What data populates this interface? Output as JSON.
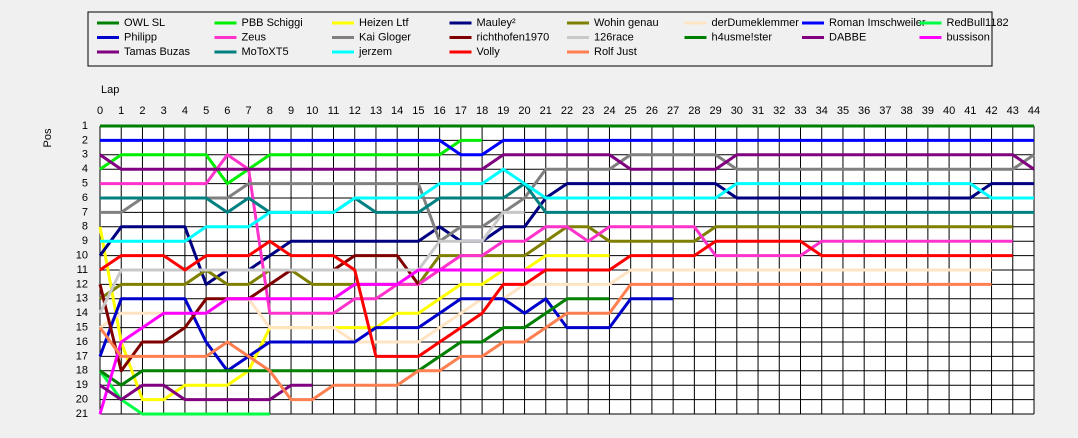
{
  "chart_data": {
    "type": "line",
    "xlabel": "Lap",
    "ylabel": "Pos",
    "x": [
      0,
      1,
      2,
      3,
      4,
      5,
      6,
      7,
      8,
      9,
      10,
      11,
      12,
      13,
      14,
      15,
      16,
      17,
      18,
      19,
      20,
      21,
      22,
      23,
      24,
      25,
      26,
      27,
      28,
      29,
      30,
      31,
      32,
      33,
      34,
      35,
      36,
      37,
      38,
      39,
      40,
      41,
      42,
      43,
      44
    ],
    "xlim": [
      0,
      44
    ],
    "xticks": [
      0,
      1,
      2,
      3,
      4,
      5,
      6,
      7,
      8,
      9,
      10,
      11,
      12,
      13,
      14,
      15,
      16,
      17,
      18,
      19,
      20,
      21,
      22,
      23,
      24,
      25,
      26,
      27,
      28,
      29,
      30,
      31,
      32,
      33,
      34,
      35,
      36,
      37,
      38,
      39,
      40,
      41,
      42,
      43,
      44
    ],
    "ylim": [
      1,
      21
    ],
    "y_reversed": true,
    "yticks": [
      1,
      2,
      3,
      4,
      5,
      6,
      7,
      8,
      9,
      10,
      11,
      12,
      13,
      14,
      15,
      16,
      17,
      18,
      19,
      20,
      21
    ],
    "grid": true,
    "series": [
      {
        "name": "OWL SL",
        "color": "#008000",
        "values": [
          1,
          1,
          1,
          1,
          1,
          1,
          1,
          1,
          1,
          1,
          1,
          1,
          1,
          1,
          1,
          1,
          1,
          1,
          1,
          1,
          1,
          1,
          1,
          1,
          1,
          1,
          1,
          1,
          1,
          1,
          1,
          1,
          1,
          1,
          1,
          1,
          1,
          1,
          1,
          1,
          1,
          1,
          1,
          1,
          1
        ]
      },
      {
        "name": "PBB Schiggi",
        "color": "#00ee00",
        "values": [
          4,
          3,
          3,
          3,
          3,
          3,
          5,
          4,
          3,
          3,
          3,
          3,
          3,
          3,
          3,
          3,
          3,
          2,
          2,
          null,
          null,
          null,
          null,
          null,
          null,
          null,
          null,
          null,
          null,
          null,
          null,
          null,
          null,
          null,
          null,
          null,
          null,
          null,
          null,
          null,
          null,
          null,
          null,
          null,
          null
        ]
      },
      {
        "name": "Heizen Ltf",
        "color": "#ffff00",
        "values": [
          8,
          16,
          20,
          20,
          19,
          19,
          19,
          18,
          15,
          15,
          15,
          15,
          15,
          15,
          14,
          14,
          13,
          12,
          12,
          11,
          11,
          10,
          10,
          10,
          10,
          null,
          null,
          null,
          null,
          null,
          null,
          null,
          null,
          null,
          null,
          null,
          null,
          null,
          null,
          null,
          null,
          null,
          null,
          null,
          null
        ]
      },
      {
        "name": "Mauley²",
        "color": "#000080",
        "values": [
          10,
          8,
          8,
          8,
          8,
          12,
          11,
          11,
          10,
          9,
          9,
          9,
          9,
          9,
          9,
          9,
          8,
          9,
          9,
          8,
          8,
          6,
          5,
          5,
          5,
          5,
          5,
          5,
          5,
          5,
          6,
          6,
          6,
          6,
          6,
          6,
          6,
          6,
          6,
          6,
          6,
          6,
          5,
          5,
          5
        ]
      },
      {
        "name": "Wohin genau",
        "color": "#808000",
        "values": [
          13,
          12,
          12,
          12,
          12,
          11,
          12,
          12,
          11,
          11,
          12,
          12,
          12,
          12,
          12,
          12,
          10,
          10,
          10,
          10,
          10,
          9,
          8,
          8,
          9,
          9,
          9,
          9,
          9,
          8,
          8,
          8,
          8,
          8,
          8,
          8,
          8,
          8,
          8,
          8,
          8,
          8,
          8,
          8,
          null
        ]
      },
      {
        "name": "derDumeklemmer",
        "color": "#ffe4c4",
        "values": [
          15,
          14,
          14,
          14,
          14,
          14,
          13,
          13,
          15,
          15,
          15,
          15,
          16,
          16,
          16,
          16,
          15,
          14,
          13,
          13,
          12,
          12,
          12,
          12,
          12,
          11,
          11,
          11,
          11,
          11,
          11,
          11,
          11,
          11,
          11,
          11,
          11,
          11,
          11,
          11,
          11,
          11,
          11,
          null,
          null
        ]
      },
      {
        "name": "Roman Imschweiler",
        "color": "#0000ff",
        "values": [
          2,
          2,
          2,
          2,
          2,
          2,
          2,
          2,
          2,
          2,
          2,
          2,
          2,
          2,
          2,
          2,
          2,
          3,
          3,
          2,
          2,
          2,
          2,
          2,
          2,
          2,
          2,
          2,
          2,
          2,
          2,
          2,
          2,
          2,
          2,
          2,
          2,
          2,
          2,
          2,
          2,
          2,
          2,
          2,
          2
        ]
      },
      {
        "name": "RedBull1182",
        "color": "#00ff44",
        "values": [
          18,
          20,
          21,
          21,
          21,
          21,
          21,
          21,
          21,
          null,
          null,
          null,
          null,
          null,
          null,
          null,
          null,
          null,
          null,
          null,
          null,
          null,
          null,
          null,
          null,
          null,
          null,
          null,
          null,
          null,
          null,
          null,
          null,
          null,
          null,
          null,
          null,
          null,
          null,
          null,
          null,
          null,
          null,
          null,
          null
        ]
      },
      {
        "name": "Philipp",
        "color": "#0000cc",
        "values": [
          17,
          13,
          13,
          13,
          13,
          16,
          18,
          17,
          16,
          16,
          16,
          16,
          16,
          15,
          15,
          15,
          14,
          13,
          13,
          13,
          14,
          13,
          15,
          15,
          15,
          13,
          13,
          13,
          null,
          null,
          null,
          null,
          null,
          null,
          null,
          null,
          null,
          null,
          null,
          null,
          null,
          null,
          null,
          null,
          null
        ]
      },
      {
        "name": "Zeus",
        "color": "#ff33cc",
        "values": [
          5,
          5,
          5,
          5,
          5,
          5,
          3,
          4,
          14,
          14,
          14,
          14,
          13,
          13,
          12,
          12,
          11,
          10,
          10,
          9,
          9,
          8,
          8,
          9,
          8,
          8,
          8,
          8,
          8,
          10,
          10,
          10,
          10,
          10,
          9,
          9,
          9,
          9,
          9,
          9,
          9,
          9,
          9,
          9,
          null
        ]
      },
      {
        "name": "Kai Gloger",
        "color": "#808080",
        "values": [
          7,
          7,
          6,
          6,
          6,
          6,
          6,
          5,
          5,
          5,
          5,
          5,
          5,
          5,
          5,
          5,
          9,
          8,
          8,
          7,
          6,
          4,
          4,
          4,
          4,
          3,
          3,
          3,
          3,
          3,
          4,
          4,
          4,
          4,
          4,
          4,
          4,
          4,
          4,
          4,
          4,
          4,
          4,
          4,
          3
        ]
      },
      {
        "name": "richthofen1970",
        "color": "#800000",
        "values": [
          12,
          18,
          16,
          16,
          15,
          13,
          13,
          13,
          12,
          11,
          11,
          11,
          10,
          10,
          10,
          12,
          null,
          null,
          null,
          null,
          null,
          null,
          null,
          null,
          null,
          null,
          null,
          null,
          null,
          null,
          null,
          null,
          null,
          null,
          null,
          null,
          null,
          null,
          null,
          null,
          null,
          null,
          null,
          null,
          null
        ]
      },
      {
        "name": "126race",
        "color": "#c8c8c8",
        "values": [
          14,
          11,
          11,
          11,
          11,
          11,
          11,
          11,
          11,
          11,
          11,
          11,
          11,
          11,
          11,
          11,
          9,
          9,
          9,
          7,
          7,
          null,
          null,
          null,
          null,
          null,
          null,
          null,
          null,
          null,
          null,
          null,
          null,
          null,
          null,
          null,
          null,
          null,
          null,
          null,
          null,
          null,
          null,
          null,
          null
        ]
      },
      {
        "name": "h4usme!ster",
        "color": "#008000",
        "values": [
          18,
          19,
          18,
          18,
          18,
          18,
          18,
          18,
          18,
          18,
          18,
          18,
          18,
          18,
          18,
          18,
          17,
          16,
          16,
          15,
          15,
          14,
          13,
          13,
          13,
          null,
          null,
          null,
          null,
          null,
          null,
          null,
          null,
          null,
          null,
          null,
          null,
          null,
          null,
          null,
          null,
          null,
          null,
          null,
          null
        ]
      },
      {
        "name": "DABBE",
        "color": "#800080",
        "values": [
          3,
          4,
          4,
          4,
          4,
          4,
          4,
          4,
          4,
          4,
          4,
          4,
          4,
          4,
          4,
          4,
          4,
          4,
          4,
          3,
          3,
          3,
          3,
          3,
          3,
          4,
          4,
          4,
          4,
          4,
          3,
          3,
          3,
          3,
          3,
          3,
          3,
          3,
          3,
          3,
          3,
          3,
          3,
          3,
          4
        ]
      },
      {
        "name": "bussison",
        "color": "#ff00ff",
        "values": [
          21,
          16,
          15,
          14,
          14,
          14,
          13,
          13,
          13,
          13,
          13,
          13,
          12,
          12,
          12,
          11,
          11,
          11,
          11,
          11,
          11,
          11,
          11,
          11,
          11,
          null,
          null,
          null,
          null,
          null,
          null,
          null,
          null,
          null,
          null,
          null,
          null,
          null,
          null,
          null,
          null,
          null,
          null,
          null,
          null
        ]
      },
      {
        "name": "Tamas Buzas",
        "color": "#800080",
        "values": [
          19,
          20,
          19,
          19,
          20,
          20,
          20,
          20,
          20,
          19,
          19,
          null,
          null,
          null,
          null,
          null,
          null,
          null,
          null,
          null,
          null,
          null,
          null,
          null,
          null,
          null,
          null,
          null,
          null,
          null,
          null,
          null,
          null,
          null,
          null,
          null,
          null,
          null,
          null,
          null,
          null,
          null,
          null,
          null,
          null
        ]
      },
      {
        "name": "MoToXT5",
        "color": "#008080",
        "values": [
          6,
          6,
          6,
          6,
          6,
          6,
          7,
          6,
          7,
          7,
          7,
          7,
          6,
          7,
          7,
          7,
          6,
          6,
          6,
          6,
          5,
          7,
          7,
          7,
          7,
          7,
          7,
          7,
          7,
          7,
          7,
          7,
          7,
          7,
          7,
          7,
          7,
          7,
          7,
          7,
          7,
          7,
          7,
          7,
          7
        ]
      },
      {
        "name": "jerzem",
        "color": "#00ffff",
        "values": [
          9,
          9,
          9,
          9,
          9,
          8,
          8,
          8,
          7,
          7,
          7,
          7,
          6,
          6,
          6,
          6,
          5,
          5,
          5,
          4,
          5,
          6,
          6,
          6,
          6,
          6,
          6,
          6,
          6,
          6,
          5,
          5,
          5,
          5,
          5,
          5,
          5,
          5,
          5,
          5,
          5,
          5,
          6,
          6,
          6
        ]
      },
      {
        "name": "Volly",
        "color": "#ff0000",
        "values": [
          11,
          10,
          10,
          10,
          11,
          10,
          10,
          10,
          9,
          10,
          10,
          10,
          11,
          17,
          17,
          17,
          16,
          15,
          14,
          12,
          12,
          11,
          11,
          11,
          11,
          10,
          10,
          10,
          10,
          9,
          9,
          9,
          9,
          9,
          10,
          10,
          10,
          10,
          10,
          10,
          10,
          10,
          10,
          10,
          null
        ]
      },
      {
        "name": "Rolf Just",
        "color": "#ff7f50",
        "values": [
          15,
          17,
          17,
          17,
          17,
          17,
          16,
          17,
          18,
          20,
          20,
          19,
          19,
          19,
          19,
          18,
          18,
          17,
          17,
          16,
          16,
          15,
          14,
          14,
          14,
          12,
          12,
          12,
          12,
          12,
          12,
          12,
          12,
          12,
          12,
          12,
          12,
          12,
          12,
          12,
          12,
          12,
          12,
          null,
          null
        ]
      }
    ]
  }
}
